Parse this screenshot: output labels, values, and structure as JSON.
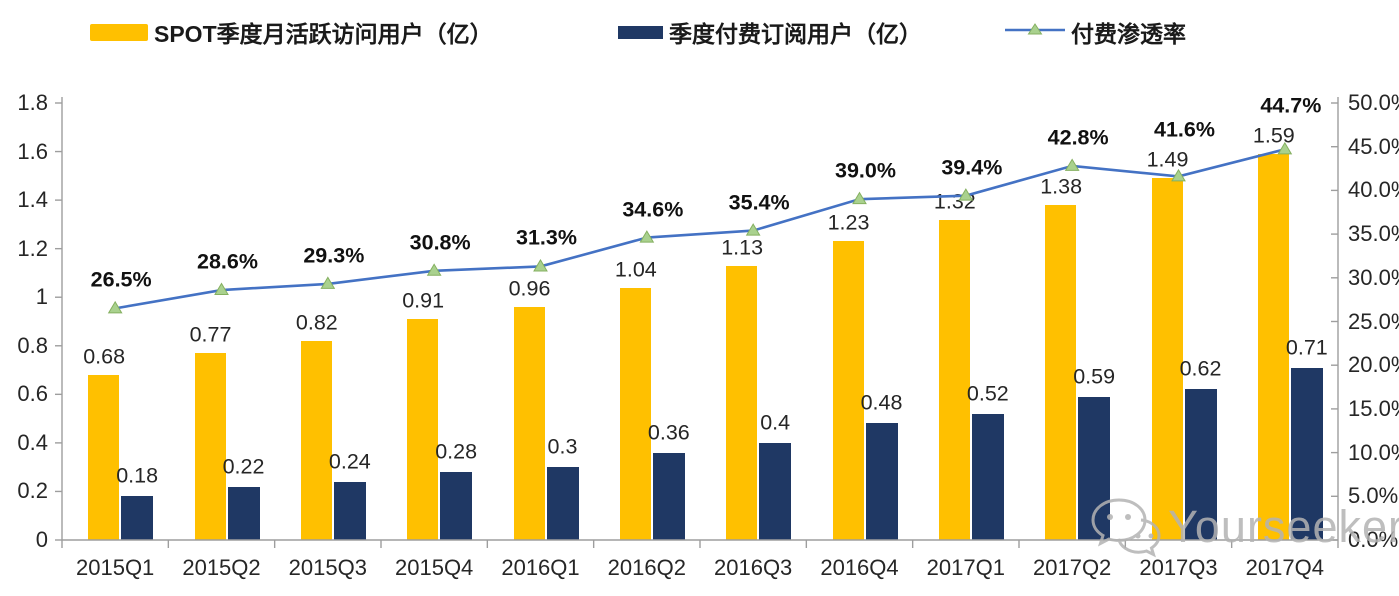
{
  "legend": {
    "items": [
      {
        "label": "SPOT季度月活跃访问用户（亿）",
        "type": "bar",
        "color": "#FFC000"
      },
      {
        "label": "季度付费订阅用户（亿）",
        "type": "bar",
        "color": "#1F3864"
      },
      {
        "label": "付费渗透率",
        "type": "line",
        "color": "#4472C4",
        "marker_color": "#A9D18E"
      }
    ]
  },
  "chart_data": {
    "type": "combo-bar-line",
    "title": "",
    "categories": [
      "2015Q1",
      "2015Q2",
      "2015Q3",
      "2015Q4",
      "2016Q1",
      "2016Q2",
      "2016Q3",
      "2016Q4",
      "2017Q1",
      "2017Q2",
      "2017Q3",
      "2017Q4"
    ],
    "series": [
      {
        "name": "SPOT季度月活跃访问用户（亿）",
        "type": "bar",
        "axis": "left",
        "color": "#FFC000",
        "values": [
          0.68,
          0.77,
          0.82,
          0.91,
          0.96,
          1.04,
          1.13,
          1.23,
          1.32,
          1.38,
          1.49,
          1.59
        ],
        "labels": [
          "0.68",
          "0.77",
          "0.82",
          "0.91",
          "0.96",
          "1.04",
          "1.13",
          "1.23",
          "1.32",
          "1.38",
          "1.49",
          "1.59"
        ]
      },
      {
        "name": "季度付费订阅用户（亿）",
        "type": "bar",
        "axis": "left",
        "color": "#1F3864",
        "values": [
          0.18,
          0.22,
          0.24,
          0.28,
          0.3,
          0.36,
          0.4,
          0.48,
          0.52,
          0.59,
          0.62,
          0.71
        ],
        "labels": [
          "0.18",
          "0.22",
          "0.24",
          "0.28",
          "0.3",
          "0.36",
          "0.4",
          "0.48",
          "0.52",
          "0.59",
          "0.62",
          "0.71"
        ]
      },
      {
        "name": "付费渗透率",
        "type": "line",
        "axis": "right",
        "color": "#4472C4",
        "marker": "triangle",
        "marker_color": "#A9D18E",
        "values": [
          26.5,
          28.6,
          29.3,
          30.8,
          31.3,
          34.6,
          35.4,
          39.0,
          39.4,
          42.8,
          41.6,
          44.7
        ],
        "labels": [
          "26.5%",
          "28.6%",
          "29.3%",
          "30.8%",
          "31.3%",
          "34.6%",
          "35.4%",
          "39.0%",
          "39.4%",
          "42.8%",
          "41.6%",
          "44.7%"
        ]
      }
    ],
    "left_axis": {
      "min": 0,
      "max": 1.8,
      "tick_labels": [
        "1.8",
        "1.6",
        "1.4",
        "1.2",
        "1",
        "0.8",
        "0.6",
        "0.4",
        "0.2",
        "0"
      ]
    },
    "right_axis": {
      "min": 0,
      "max": 50,
      "tick_labels": [
        "50.0%",
        "45.0%",
        "40.0%",
        "35.0%",
        "30.0%",
        "25.0%",
        "20.0%",
        "15.0%",
        "10.0%",
        "5.0%",
        "0.0%"
      ]
    },
    "grid": false,
    "legend_position": "top",
    "axis_color": "#9e9e9e"
  },
  "watermark": {
    "text": "Yourseeker",
    "icon": "wechat-icon"
  }
}
